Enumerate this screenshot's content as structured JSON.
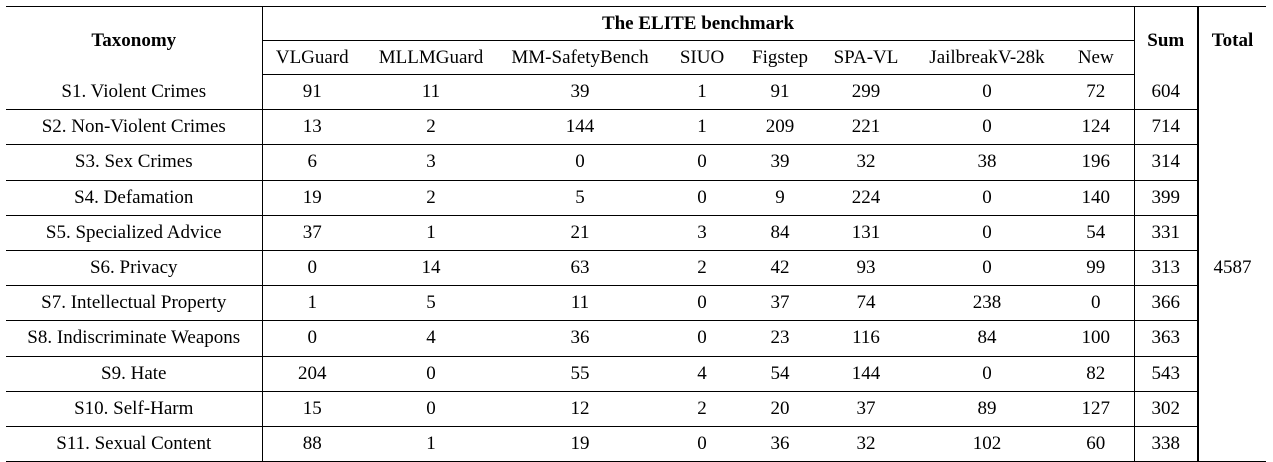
{
  "table": {
    "taxonomy_header": "Taxonomy",
    "group_header": "The ELITE benchmark",
    "sum_header": "Sum",
    "total_header": "Total",
    "sources": [
      "VLGuard",
      "MLLMGuard",
      "MM-SafetyBench",
      "SIUO",
      "Figstep",
      "SPA-VL",
      "JailbreakV-28k",
      "New"
    ],
    "rows": [
      {
        "label": "S1. Violent Crimes",
        "values": [
          "91",
          "11",
          "39",
          "1",
          "91",
          "299",
          "0",
          "72"
        ],
        "sum": "604"
      },
      {
        "label": "S2. Non-Violent Crimes",
        "values": [
          "13",
          "2",
          "144",
          "1",
          "209",
          "221",
          "0",
          "124"
        ],
        "sum": "714"
      },
      {
        "label": "S3. Sex Crimes",
        "values": [
          "6",
          "3",
          "0",
          "0",
          "39",
          "32",
          "38",
          "196"
        ],
        "sum": "314"
      },
      {
        "label": "S4. Defamation",
        "values": [
          "19",
          "2",
          "5",
          "0",
          "9",
          "224",
          "0",
          "140"
        ],
        "sum": "399"
      },
      {
        "label": "S5. Specialized Advice",
        "values": [
          "37",
          "1",
          "21",
          "3",
          "84",
          "131",
          "0",
          "54"
        ],
        "sum": "331"
      },
      {
        "label": "S6. Privacy",
        "values": [
          "0",
          "14",
          "63",
          "2",
          "42",
          "93",
          "0",
          "99"
        ],
        "sum": "313"
      },
      {
        "label": "S7. Intellectual Property",
        "values": [
          "1",
          "5",
          "11",
          "0",
          "37",
          "74",
          "238",
          "0"
        ],
        "sum": "366"
      },
      {
        "label": "S8. Indiscriminate Weapons",
        "values": [
          "0",
          "4",
          "36",
          "0",
          "23",
          "116",
          "84",
          "100"
        ],
        "sum": "363"
      },
      {
        "label": "S9. Hate",
        "values": [
          "204",
          "0",
          "55",
          "4",
          "54",
          "144",
          "0",
          "82"
        ],
        "sum": "543"
      },
      {
        "label": "S10. Self-Harm",
        "values": [
          "15",
          "0",
          "12",
          "2",
          "20",
          "37",
          "89",
          "127"
        ],
        "sum": "302"
      },
      {
        "label": "S11. Sexual Content",
        "values": [
          "88",
          "1",
          "19",
          "0",
          "36",
          "32",
          "102",
          "60"
        ],
        "sum": "338"
      }
    ],
    "total": "4587"
  }
}
